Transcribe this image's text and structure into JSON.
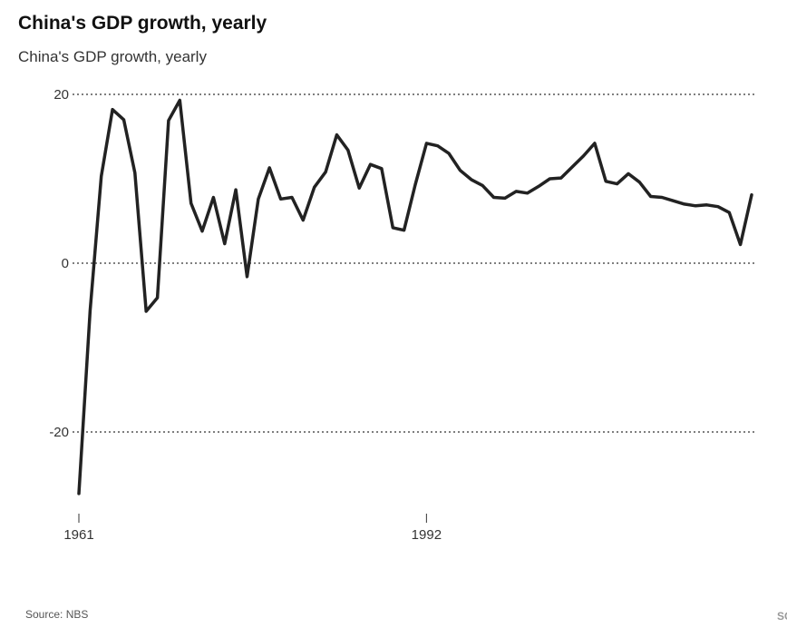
{
  "header": {
    "title": "China's GDP growth, yearly",
    "subtitle": "China's GDP growth, yearly"
  },
  "footer": {
    "source": "Source: NBS",
    "credit": "SCMP"
  },
  "colors": {
    "line": "#222222",
    "grid": "#333333",
    "text": "#333333"
  },
  "chart_data": {
    "type": "line",
    "title": "China's GDP growth, yearly",
    "subtitle": "China's GDP growth, yearly",
    "xlabel": "",
    "ylabel": "",
    "grid": true,
    "legend": "none",
    "xlim": [
      1961,
      2021
    ],
    "ylim": [
      -27.3,
      19.3
    ],
    "y_ticks": [
      20,
      0,
      -20
    ],
    "y_tick_labels": [
      "20",
      "0",
      "-20"
    ],
    "x_ticks": [
      1961,
      1992
    ],
    "x_tick_labels": [
      "1961",
      "1992"
    ],
    "series": [
      {
        "x": [
          1961,
          1962,
          1963,
          1964,
          1965,
          1966,
          1967,
          1968,
          1969,
          1970,
          1971,
          1972,
          1973,
          1974,
          1975,
          1976,
          1977,
          1978,
          1979,
          1980,
          1981,
          1982,
          1983,
          1984,
          1985,
          1986,
          1987,
          1988,
          1989,
          1990,
          1991,
          1992,
          1993,
          1994,
          1995,
          1996,
          1997,
          1998,
          1999,
          2000,
          2001,
          2002,
          2003,
          2004,
          2005,
          2006,
          2007,
          2008,
          2009,
          2010,
          2011,
          2012,
          2013,
          2014,
          2015,
          2016,
          2017,
          2018,
          2019,
          2020,
          2021
        ],
        "values": [
          -27.3,
          -5.6,
          10.3,
          18.2,
          17.0,
          10.7,
          -5.7,
          -4.1,
          16.9,
          19.3,
          7.1,
          3.8,
          7.8,
          2.3,
          8.7,
          -1.6,
          7.6,
          11.3,
          7.6,
          7.8,
          5.1,
          9.0,
          10.8,
          15.2,
          13.4,
          8.9,
          11.7,
          11.2,
          4.2,
          3.9,
          9.3,
          14.2,
          13.9,
          13.0,
          11.0,
          9.9,
          9.2,
          7.8,
          7.7,
          8.5,
          8.3,
          9.1,
          10.0,
          10.1,
          11.4,
          12.7,
          14.2,
          9.7,
          9.4,
          10.6,
          9.6,
          7.9,
          7.8,
          7.4,
          7.0,
          6.8,
          6.9,
          6.7,
          6.0,
          2.2,
          8.1
        ]
      }
    ]
  }
}
